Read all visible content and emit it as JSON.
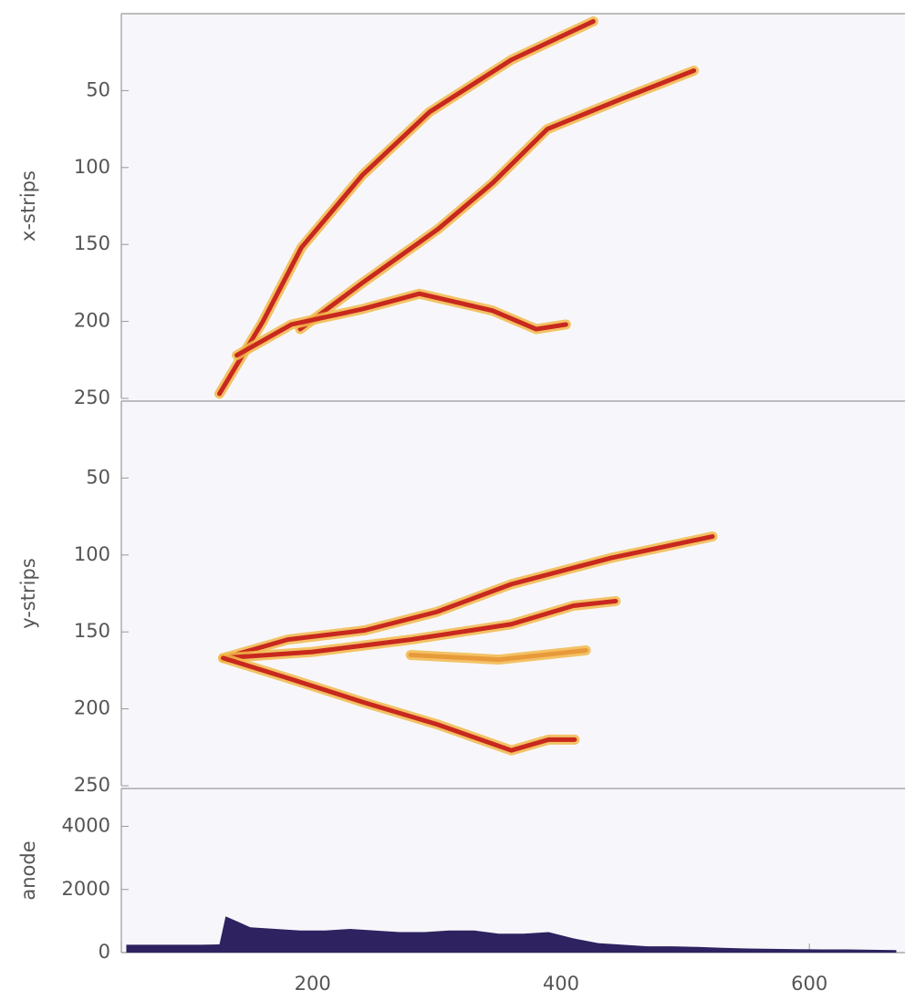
{
  "chart_data": [
    {
      "type": "line",
      "ylabel": "x-strips",
      "xlim": [
        46,
        677
      ],
      "ylim": [
        250,
        0
      ],
      "yticks": [
        50,
        100,
        150,
        200,
        250
      ],
      "series": [
        {
          "color": "#c8281e",
          "x": [
            125,
            160,
            191,
            240,
            294,
            360,
            426
          ],
          "values": [
            247,
            200,
            152,
            105,
            64,
            30,
            5
          ]
        },
        {
          "color": "#c8281e",
          "x": [
            190,
            240,
            301,
            345,
            389,
            450,
            507
          ],
          "values": [
            205,
            175,
            140,
            110,
            75,
            55,
            37
          ]
        },
        {
          "color": "#c8281e",
          "x": [
            139,
            183,
            240,
            286,
            345,
            380,
            404
          ],
          "values": [
            222,
            202,
            192,
            182,
            193,
            205,
            202
          ]
        }
      ]
    },
    {
      "type": "line",
      "ylabel": "y-strips",
      "xlim": [
        46,
        677
      ],
      "ylim": [
        250,
        0
      ],
      "yticks": [
        50,
        100,
        150,
        200,
        250
      ],
      "series": [
        {
          "color": "#c8281e",
          "x": [
            128,
            180,
            242,
            300,
            360,
            440,
            522
          ],
          "values": [
            167,
            155,
            149,
            137,
            119,
            102,
            88
          ]
        },
        {
          "color": "#c8281e",
          "x": [
            128,
            200,
            279,
            360,
            410,
            444
          ],
          "values": [
            167,
            163,
            155,
            145,
            133,
            130
          ]
        },
        {
          "color": "#c8281e",
          "x": [
            128,
            180,
            242,
            300,
            360,
            390,
            411
          ],
          "values": [
            167,
            180,
            196,
            210,
            227,
            220,
            220
          ]
        },
        {
          "color": "#e89a3a",
          "x": [
            279,
            350,
            420
          ],
          "values": [
            165,
            168,
            162
          ]
        }
      ]
    },
    {
      "type": "area",
      "ylabel": "anode",
      "color": "#2e2260",
      "xlim": [
        46,
        677
      ],
      "ylim": [
        0,
        5200
      ],
      "yticks": [
        0,
        2000,
        4000
      ],
      "xticks": [
        200,
        400,
        600
      ],
      "x": [
        50,
        70,
        90,
        110,
        125,
        130,
        150,
        170,
        190,
        210,
        230,
        250,
        270,
        290,
        310,
        330,
        350,
        370,
        390,
        410,
        430,
        450,
        470,
        490,
        510,
        530,
        550,
        570,
        590,
        610,
        630,
        650,
        670
      ],
      "values": [
        250,
        250,
        250,
        250,
        260,
        1150,
        800,
        750,
        700,
        700,
        750,
        700,
        650,
        650,
        700,
        700,
        600,
        600,
        650,
        450,
        300,
        250,
        200,
        200,
        180,
        150,
        130,
        120,
        110,
        100,
        100,
        90,
        80
      ]
    }
  ]
}
